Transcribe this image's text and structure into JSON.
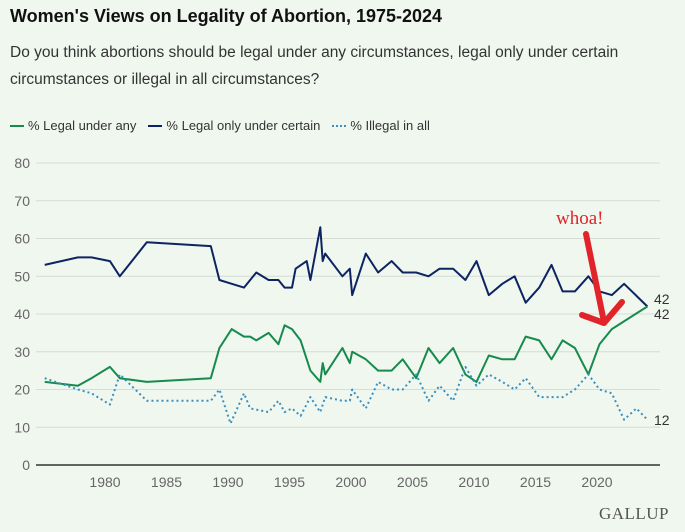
{
  "chart_data": {
    "type": "line",
    "title": "Women's Views on Legality of Abortion, 1975-2024",
    "subtitle_line1": "Do you think abortions should be legal under any circumstances, legal only under certain",
    "subtitle_line2": "circumstances or illegal in all circumstances?",
    "xlim": [
      1975,
      2024
    ],
    "ylim": [
      0,
      80
    ],
    "x_ticks": [
      1980,
      1985,
      1990,
      1995,
      2000,
      2005,
      2010,
      2015,
      2020
    ],
    "y_ticks": [
      0,
      10,
      20,
      30,
      40,
      50,
      60,
      70,
      80
    ],
    "grid": true,
    "legend_position": "top-left",
    "series": [
      {
        "name": "% Legal under any",
        "color": "#178a4e",
        "style": "solid",
        "end_label": "42",
        "points": [
          [
            1975.1,
            22
          ],
          [
            1977.8,
            21
          ],
          [
            1978.9,
            23
          ],
          [
            1980.4,
            26
          ],
          [
            1981.2,
            23
          ],
          [
            1983.4,
            22
          ],
          [
            1988.6,
            23
          ],
          [
            1989.3,
            31
          ],
          [
            1990.3,
            36
          ],
          [
            1991.3,
            34
          ],
          [
            1991.8,
            34
          ],
          [
            1992.3,
            33
          ],
          [
            1993.3,
            35
          ],
          [
            1994.1,
            32
          ],
          [
            1994.6,
            37
          ],
          [
            1995.2,
            36
          ],
          [
            1995.9,
            33
          ],
          [
            1996.7,
            25
          ],
          [
            1997.5,
            22
          ],
          [
            1997.7,
            27
          ],
          [
            1997.9,
            24
          ],
          [
            1999.3,
            31
          ],
          [
            1999.9,
            27
          ],
          [
            2000.1,
            30
          ],
          [
            2001.2,
            28
          ],
          [
            2002.2,
            25
          ],
          [
            2003.3,
            25
          ],
          [
            2004.2,
            28
          ],
          [
            2005.3,
            23
          ],
          [
            2006.3,
            31
          ],
          [
            2007.2,
            27
          ],
          [
            2008.3,
            31
          ],
          [
            2009.3,
            24
          ],
          [
            2010.2,
            22
          ],
          [
            2011.2,
            29
          ],
          [
            2012.3,
            28
          ],
          [
            2013.3,
            28
          ],
          [
            2014.2,
            34
          ],
          [
            2015.3,
            33
          ],
          [
            2016.3,
            28
          ],
          [
            2017.2,
            33
          ],
          [
            2018.2,
            31
          ],
          [
            2019.3,
            24
          ],
          [
            2020.2,
            32
          ],
          [
            2021.2,
            36
          ],
          [
            2024.1,
            42
          ]
        ]
      },
      {
        "name": "% Legal only under certain",
        "color": "#0c2461",
        "style": "solid",
        "end_label": "42",
        "points": [
          [
            1975.1,
            53
          ],
          [
            1977.8,
            55
          ],
          [
            1978.9,
            55
          ],
          [
            1980.4,
            54
          ],
          [
            1981.2,
            50
          ],
          [
            1983.4,
            59
          ],
          [
            1988.6,
            58
          ],
          [
            1989.3,
            49
          ],
          [
            1990.3,
            48
          ],
          [
            1991.3,
            47
          ],
          [
            1992.3,
            51
          ],
          [
            1993.3,
            49
          ],
          [
            1994.1,
            49
          ],
          [
            1994.6,
            47
          ],
          [
            1995.2,
            47
          ],
          [
            1995.5,
            52
          ],
          [
            1996.4,
            54
          ],
          [
            1996.7,
            49
          ],
          [
            1997.5,
            63
          ],
          [
            1997.7,
            54
          ],
          [
            1997.9,
            56
          ],
          [
            1999.3,
            50
          ],
          [
            1999.9,
            52
          ],
          [
            2000.1,
            45
          ],
          [
            2001.2,
            56
          ],
          [
            2002.2,
            51
          ],
          [
            2003.3,
            54
          ],
          [
            2004.2,
            51
          ],
          [
            2005.3,
            51
          ],
          [
            2006.3,
            50
          ],
          [
            2007.2,
            52
          ],
          [
            2008.3,
            52
          ],
          [
            2009.3,
            49
          ],
          [
            2010.2,
            54
          ],
          [
            2011.2,
            45
          ],
          [
            2012.3,
            48
          ],
          [
            2013.3,
            50
          ],
          [
            2014.2,
            43
          ],
          [
            2015.3,
            47
          ],
          [
            2016.3,
            53
          ],
          [
            2017.2,
            46
          ],
          [
            2018.2,
            46
          ],
          [
            2019.3,
            50
          ],
          [
            2020.2,
            46
          ],
          [
            2021.2,
            45
          ],
          [
            2022.2,
            48
          ],
          [
            2024.1,
            42
          ]
        ]
      },
      {
        "name": "% Illegal in all",
        "color": "#3a8fbf",
        "style": "dotted",
        "end_label": "12",
        "points": [
          [
            1975.1,
            23
          ],
          [
            1977.8,
            20
          ],
          [
            1978.9,
            19
          ],
          [
            1980.4,
            16
          ],
          [
            1981.2,
            24
          ],
          [
            1983.4,
            17
          ],
          [
            1988.6,
            17
          ],
          [
            1989.3,
            20
          ],
          [
            1990.2,
            11
          ],
          [
            1991.3,
            19
          ],
          [
            1991.8,
            15
          ],
          [
            1993.3,
            14
          ],
          [
            1994.1,
            17
          ],
          [
            1994.6,
            14
          ],
          [
            1995.2,
            15
          ],
          [
            1995.9,
            13
          ],
          [
            1996.7,
            18
          ],
          [
            1997.5,
            14
          ],
          [
            1997.9,
            18
          ],
          [
            1999.3,
            17
          ],
          [
            1999.9,
            17
          ],
          [
            2000.1,
            20
          ],
          [
            2001.2,
            15
          ],
          [
            2002.2,
            22
          ],
          [
            2003.3,
            20
          ],
          [
            2004.2,
            20
          ],
          [
            2005.3,
            24
          ],
          [
            2006.3,
            17
          ],
          [
            2007.2,
            21
          ],
          [
            2008.3,
            17
          ],
          [
            2009.3,
            26
          ],
          [
            2010.2,
            21
          ],
          [
            2011.2,
            24
          ],
          [
            2012.3,
            22
          ],
          [
            2013.3,
            20
          ],
          [
            2014.2,
            23
          ],
          [
            2015.3,
            18
          ],
          [
            2016.3,
            18
          ],
          [
            2017.2,
            18
          ],
          [
            2018.2,
            20
          ],
          [
            2019.3,
            24
          ],
          [
            2020.2,
            20
          ],
          [
            2021.2,
            19
          ],
          [
            2022.2,
            12
          ],
          [
            2023.2,
            15
          ],
          [
            2024.1,
            12
          ]
        ]
      }
    ],
    "annotation": {
      "text": "whoa!",
      "color": "#e0242a"
    },
    "source": "GALLUP"
  }
}
